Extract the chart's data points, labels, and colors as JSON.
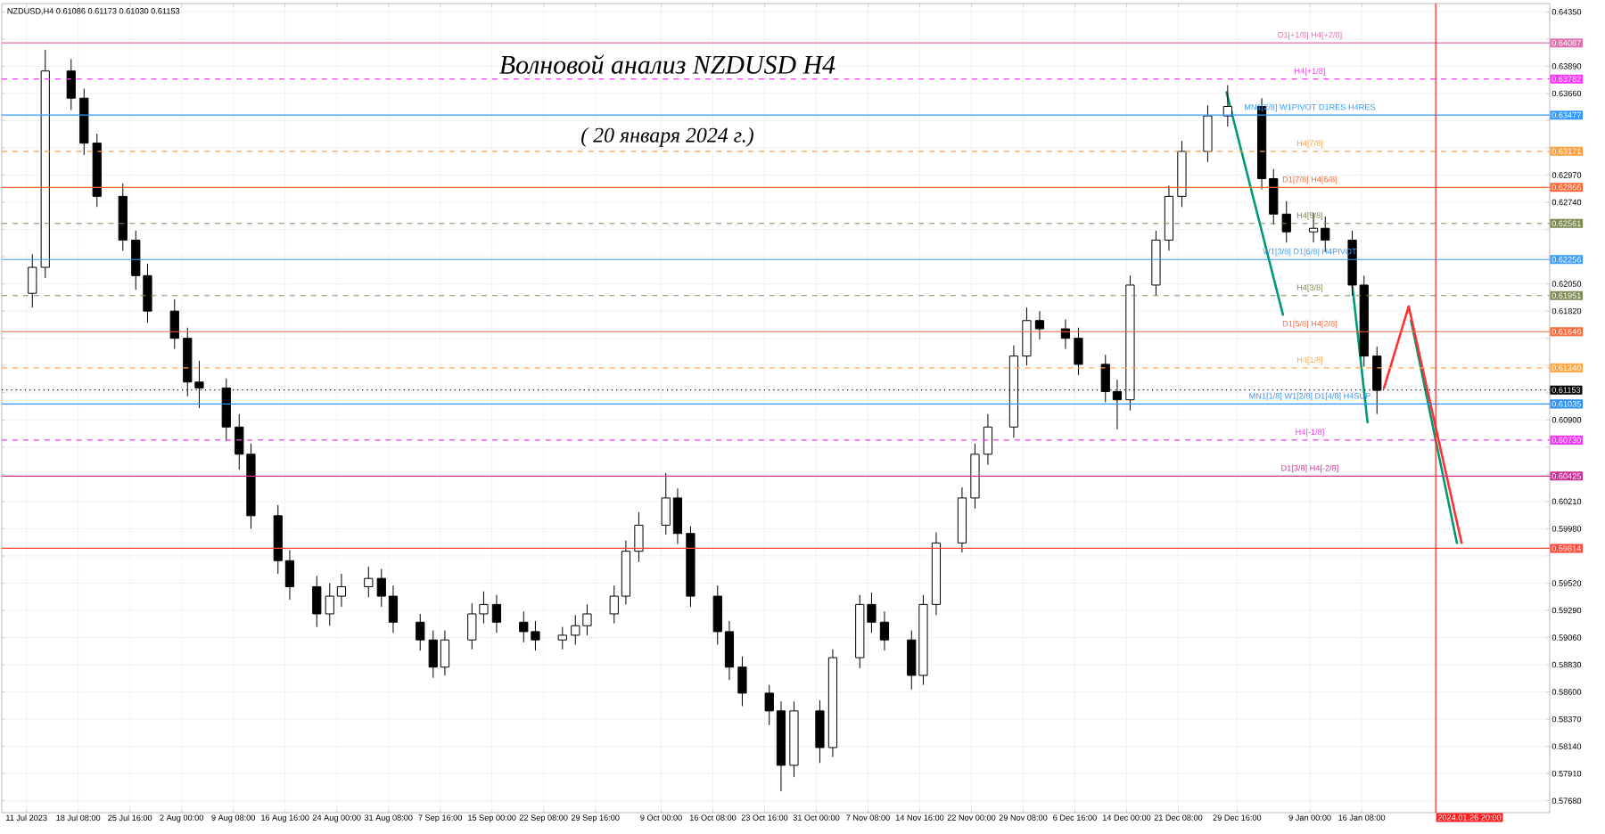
{
  "chart_data": {
    "type": "candlestick",
    "title": "Волновой анализ NZDUSD H4",
    "subtitle": "( 20 января 2024 г.)",
    "annotations": [
      "NZDUSD,H4  0.61086 0.61173 0.61030 0.61153"
    ],
    "x": [
      "2023-07-11T20:00",
      "2023-07-13T16:00",
      "2023-07-17T08:00",
      "2023-07-19T04:00",
      "2023-07-21T00:00",
      "2023-07-24T16:00",
      "2023-07-26T12:00",
      "2023-07-28T04:00",
      "2023-08-01T00:00",
      "2023-08-02T20:00",
      "2023-08-04T12:00",
      "2023-08-08T08:00",
      "2023-08-10T04:00",
      "2023-08-11T20:00",
      "2023-08-15T16:00",
      "2023-08-17T08:00",
      "2023-08-21T04:00",
      "2023-08-23T00:00",
      "2023-08-24T16:00",
      "2023-08-28T12:00",
      "2023-08-30T08:00",
      "2023-09-01T00:00",
      "2023-09-04T20:00",
      "2023-09-06T16:00",
      "2023-09-08T08:00",
      "2023-09-12T04:00",
      "2023-09-13T20:00",
      "2023-09-15T16:00",
      "2023-09-19T12:00",
      "2023-09-21T04:00",
      "2023-09-25T00:00",
      "2023-09-26T20:00",
      "2023-09-28T12:00",
      "2023-10-02T08:00",
      "2023-10-04T00:00",
      "2023-10-05T20:00",
      "2023-10-09T16:00",
      "2023-10-11T08:00",
      "2023-10-13T04:00",
      "2023-10-17T00:00",
      "2023-10-18T16:00",
      "2023-10-20T12:00",
      "2023-10-24T08:00",
      "2023-10-26T00:00",
      "2023-10-27T20:00",
      "2023-10-31T12:00",
      "2023-11-02T08:00",
      "2023-11-06T04:00",
      "2023-11-07T20:00",
      "2023-11-09T16:00",
      "2023-11-13T12:00",
      "2023-11-15T04:00",
      "2023-11-17T00:00",
      "2023-11-20T16:00",
      "2023-11-22T12:00",
      "2023-11-24T08:00",
      "2023-11-28T00:00",
      "2023-11-29T20:00",
      "2023-12-01T16:00",
      "2023-12-05T08:00",
      "2023-12-07T04:00",
      "2023-12-11T00:00",
      "2023-12-12T16:00",
      "2023-12-14T12:00",
      "2023-12-18T04:00",
      "2023-12-20T00:00",
      "2023-12-21T20:00",
      "2023-12-25T12:00",
      "2023-12-28T08:00",
      "2024-01-02T04:00",
      "2024-01-03T20:00",
      "2024-01-05T16:00",
      "2024-01-09T12:00",
      "2024-01-11T04:00",
      "2024-01-15T00:00",
      "2024-01-16T16:00",
      "2024-01-18T12:00"
    ],
    "ohlc": [
      [
        0.6197,
        0.623,
        0.6185,
        0.6219
      ],
      [
        0.6219,
        0.6403,
        0.621,
        0.6385
      ],
      [
        0.6385,
        0.6395,
        0.6352,
        0.6362
      ],
      [
        0.6362,
        0.637,
        0.6314,
        0.6324
      ],
      [
        0.6324,
        0.6332,
        0.627,
        0.6279
      ],
      [
        0.6279,
        0.629,
        0.6233,
        0.6242
      ],
      [
        0.6242,
        0.625,
        0.62,
        0.6212
      ],
      [
        0.6212,
        0.6222,
        0.6172,
        0.6182
      ],
      [
        0.6182,
        0.6192,
        0.615,
        0.6159
      ],
      [
        0.6159,
        0.6168,
        0.611,
        0.6122
      ],
      [
        0.6122,
        0.614,
        0.61,
        0.6117
      ],
      [
        0.6117,
        0.6125,
        0.6072,
        0.6084
      ],
      [
        0.6084,
        0.6095,
        0.6048,
        0.6061
      ],
      [
        0.6061,
        0.607,
        0.5998,
        0.6009
      ],
      [
        0.6009,
        0.6018,
        0.596,
        0.5971
      ],
      [
        0.5971,
        0.598,
        0.5938,
        0.5949
      ],
      [
        0.5949,
        0.5958,
        0.5915,
        0.5926
      ],
      [
        0.5926,
        0.5952,
        0.5916,
        0.5941
      ],
      [
        0.5941,
        0.596,
        0.5932,
        0.5949
      ],
      [
        0.5949,
        0.5966,
        0.594,
        0.5956
      ],
      [
        0.5956,
        0.5964,
        0.5932,
        0.5941
      ],
      [
        0.5941,
        0.595,
        0.591,
        0.5919
      ],
      [
        0.5919,
        0.5926,
        0.5895,
        0.5904
      ],
      [
        0.5904,
        0.5912,
        0.5872,
        0.5881
      ],
      [
        0.5881,
        0.5912,
        0.5874,
        0.5904
      ],
      [
        0.5904,
        0.5935,
        0.5896,
        0.5926
      ],
      [
        0.5926,
        0.5945,
        0.5918,
        0.5934
      ],
      [
        0.5934,
        0.5942,
        0.591,
        0.5919
      ],
      [
        0.5919,
        0.5928,
        0.5902,
        0.5911
      ],
      [
        0.5911,
        0.592,
        0.5895,
        0.5904
      ],
      [
        0.5904,
        0.5915,
        0.5896,
        0.5908
      ],
      [
        0.5908,
        0.5925,
        0.59,
        0.5916
      ],
      [
        0.5916,
        0.5934,
        0.5908,
        0.5926
      ],
      [
        0.5926,
        0.595,
        0.5918,
        0.5941
      ],
      [
        0.5941,
        0.5988,
        0.5934,
        0.5979
      ],
      [
        0.5979,
        0.6012,
        0.597,
        0.6001
      ],
      [
        0.6001,
        0.6045,
        0.5993,
        0.6024
      ],
      [
        0.6024,
        0.6032,
        0.5985,
        0.5994
      ],
      [
        0.5994,
        0.6,
        0.5932,
        0.5941
      ],
      [
        0.5941,
        0.595,
        0.59,
        0.5911
      ],
      [
        0.5911,
        0.592,
        0.587,
        0.5881
      ],
      [
        0.5881,
        0.589,
        0.5848,
        0.5859
      ],
      [
        0.5859,
        0.5866,
        0.5832,
        0.5844
      ],
      [
        0.5844,
        0.5852,
        0.5776,
        0.5798
      ],
      [
        0.5798,
        0.5852,
        0.5788,
        0.5844
      ],
      [
        0.5844,
        0.5853,
        0.58,
        0.5813
      ],
      [
        0.5813,
        0.5896,
        0.5805,
        0.5889
      ],
      [
        0.5889,
        0.5942,
        0.588,
        0.5934
      ],
      [
        0.5934,
        0.5944,
        0.591,
        0.5919
      ],
      [
        0.5919,
        0.5928,
        0.5895,
        0.5904
      ],
      [
        0.5904,
        0.5912,
        0.5862,
        0.5874
      ],
      [
        0.5874,
        0.5942,
        0.5866,
        0.5934
      ],
      [
        0.5934,
        0.5995,
        0.5925,
        0.5986
      ],
      [
        0.5986,
        0.6033,
        0.5978,
        0.6024
      ],
      [
        0.6024,
        0.607,
        0.6015,
        0.6061
      ],
      [
        0.6061,
        0.6095,
        0.6052,
        0.6084
      ],
      [
        0.6084,
        0.6153,
        0.6075,
        0.6144
      ],
      [
        0.6144,
        0.6185,
        0.6136,
        0.6174
      ],
      [
        0.6174,
        0.6182,
        0.6158,
        0.6167
      ],
      [
        0.6167,
        0.6175,
        0.615,
        0.6159
      ],
      [
        0.6159,
        0.6168,
        0.6128,
        0.6137
      ],
      [
        0.6137,
        0.6145,
        0.6105,
        0.6114
      ],
      [
        0.6114,
        0.6124,
        0.6082,
        0.6107
      ],
      [
        0.6107,
        0.6212,
        0.6098,
        0.6204
      ],
      [
        0.6204,
        0.625,
        0.6195,
        0.6242
      ],
      [
        0.6242,
        0.6288,
        0.6233,
        0.6279
      ],
      [
        0.6279,
        0.6326,
        0.627,
        0.6317
      ],
      [
        0.6317,
        0.6356,
        0.6308,
        0.6347
      ],
      [
        0.6347,
        0.6373,
        0.6338,
        0.6355
      ],
      [
        0.6355,
        0.6362,
        0.6285,
        0.6294
      ],
      [
        0.6294,
        0.6302,
        0.6255,
        0.6264
      ],
      [
        0.6264,
        0.6275,
        0.624,
        0.6249
      ],
      [
        0.6249,
        0.6265,
        0.624,
        0.6252
      ],
      [
        0.6252,
        0.6262,
        0.6232,
        0.6242
      ],
      [
        0.6242,
        0.625,
        0.6195,
        0.6204
      ],
      [
        0.6204,
        0.6212,
        0.6135,
        0.6144
      ],
      [
        0.6144,
        0.6152,
        0.6095,
        0.6115
      ]
    ],
    "series": [
      {
        "type": "line",
        "color": "#009977",
        "x": [
          "2023-12-28T04:00",
          "2024-01-05T04:00"
        ],
        "values": [
          0.6367,
          0.6179
        ]
      },
      {
        "type": "line",
        "color": "#009977",
        "x": [
          "2024-01-15T00:00",
          "2024-01-17T04:00"
        ],
        "values": [
          0.6204,
          0.6088
        ]
      },
      {
        "type": "line",
        "color": "#009977",
        "x": [
          "2024-01-23T08:00",
          "2024-01-29T20:00"
        ],
        "values": [
          0.6174,
          0.5986
        ]
      },
      {
        "type": "line",
        "color": "#ff3030",
        "x": [
          "2024-01-19T12:00",
          "2024-01-23T00:00",
          "2024-01-30T12:00"
        ],
        "values": [
          0.6117,
          0.6186,
          0.5986
        ]
      }
    ],
    "xlim": [
      "2023-07-07T12:00",
      "2024-02-12T00:00"
    ],
    "ylim": [
      0.5758,
      0.6442
    ],
    "xticks": [
      {
        "value": "2023-07-11T00:00",
        "label": "11 Jul 2023"
      },
      {
        "value": "2023-07-18T08:00",
        "label": "18 Jul 08:00"
      },
      {
        "value": "2023-07-25T16:00",
        "label": "25 Jul 16:00"
      },
      {
        "value": "2023-08-02T00:00",
        "label": "2 Aug 00:00"
      },
      {
        "value": "2023-08-09T08:00",
        "label": "9 Aug 08:00"
      },
      {
        "value": "2023-08-16T16:00",
        "label": "16 Aug 16:00"
      },
      {
        "value": "2023-08-24T00:00",
        "label": "24 Aug 00:00"
      },
      {
        "value": "2023-08-31T08:00",
        "label": "31 Aug 08:00"
      },
      {
        "value": "2023-09-07T16:00",
        "label": "7 Sep 16:00"
      },
      {
        "value": "2023-09-15T00:00",
        "label": "15 Sep 00:00"
      },
      {
        "value": "2023-09-22T08:00",
        "label": "22 Sep 08:00"
      },
      {
        "value": "2023-09-29T16:00",
        "label": "29 Sep 16:00"
      },
      {
        "value": "2023-10-09T00:00",
        "label": "9 Oct 00:00"
      },
      {
        "value": "2023-10-16T08:00",
        "label": "16 Oct 08:00"
      },
      {
        "value": "2023-10-23T16:00",
        "label": "23 Oct 16:00"
      },
      {
        "value": "2023-10-31T00:00",
        "label": "31 Oct 00:00"
      },
      {
        "value": "2023-11-07T08:00",
        "label": "7 Nov 08:00"
      },
      {
        "value": "2023-11-14T16:00",
        "label": "14 Nov 16:00"
      },
      {
        "value": "2023-11-22T00:00",
        "label": "22 Nov 00:00"
      },
      {
        "value": "2023-11-29T08:00",
        "label": "29 Nov 08:00"
      },
      {
        "value": "2023-12-06T16:00",
        "label": "6 Dec 16:00"
      },
      {
        "value": "2023-12-14T00:00",
        "label": "14 Dec 00:00"
      },
      {
        "value": "2023-12-21T08:00",
        "label": "21 Dec 08:00"
      },
      {
        "value": "2023-12-29T16:00",
        "label": "29 Dec 16:00"
      },
      {
        "value": "2024-01-09T00:00",
        "label": "9 Jan 00:00"
      },
      {
        "value": "2024-01-16T08:00",
        "label": "16 Jan 08:00"
      }
    ],
    "yticks": [
      {
        "value": 0.5768,
        "label": "0.57680"
      },
      {
        "value": 0.5791,
        "label": "0.57910"
      },
      {
        "value": 0.5814,
        "label": "0.58140"
      },
      {
        "value": 0.5837,
        "label": "0.58370"
      },
      {
        "value": 0.586,
        "label": "0.58600"
      },
      {
        "value": 0.5883,
        "label": "0.58830"
      },
      {
        "value": 0.5906,
        "label": "0.59060"
      },
      {
        "value": 0.5929,
        "label": "0.59290"
      },
      {
        "value": 0.5952,
        "label": "0.59520"
      },
      {
        "value": 0.5975,
        "label": null
      },
      {
        "value": 0.59814,
        "label": "0.59814"
      },
      {
        "value": 0.5998,
        "label": "0.59980"
      },
      {
        "value": 0.6021,
        "label": "0.60210"
      },
      {
        "value": 0.60425,
        "label": "0.60425"
      },
      {
        "value": 0.6044,
        "label": null
      },
      {
        "value": 0.6067,
        "label": null
      },
      {
        "value": 0.6073,
        "label": "0.60730"
      },
      {
        "value": 0.609,
        "label": "0.60900"
      },
      {
        "value": 0.61035,
        "label": "0.61035"
      },
      {
        "value": 0.6113,
        "label": null
      },
      {
        "value": 0.61153,
        "label": "0.61153"
      },
      {
        "value": 0.6134,
        "label": "0.61340"
      },
      {
        "value": 0.6136,
        "label": null
      },
      {
        "value": 0.6159,
        "label": null
      },
      {
        "value": 0.61646,
        "label": "0.61646"
      },
      {
        "value": 0.6182,
        "label": "0.61820"
      },
      {
        "value": 0.61951,
        "label": "0.61951"
      },
      {
        "value": 0.6205,
        "label": "0.62050"
      },
      {
        "value": 0.62256,
        "label": "0.62256"
      },
      {
        "value": 0.6228,
        "label": null
      },
      {
        "value": 0.6251,
        "label": null
      },
      {
        "value": 0.62561,
        "label": "0.62561"
      },
      {
        "value": 0.6274,
        "label": "0.62740"
      },
      {
        "value": 0.62866,
        "label": "0.62866"
      },
      {
        "value": 0.6297,
        "label": "0.62970"
      },
      {
        "value": 0.63171,
        "label": "0.63171"
      },
      {
        "value": 0.632,
        "label": null
      },
      {
        "value": 0.6343,
        "label": null
      },
      {
        "value": 0.63477,
        "label": "0.63477"
      },
      {
        "value": 0.6366,
        "label": "0.63660"
      },
      {
        "value": 0.63782,
        "label": "0.63782"
      },
      {
        "value": 0.6389,
        "label": "0.63890"
      },
      {
        "value": 0.64087,
        "label": "0.64087"
      },
      {
        "value": 0.6412,
        "label": null
      },
      {
        "value": 0.6435,
        "label": "0.64350"
      }
    ],
    "grid": true,
    "ref_lines": [
      {
        "axis": "y",
        "value": 0.64087,
        "label": "D1[+1/8] H4[+2/8]",
        "color": "#e070b0",
        "line_style": "solid"
      },
      {
        "axis": "y",
        "value": 0.63782,
        "label": "H4[+1/8]",
        "color": "#ff33ff",
        "line_style": "dashed"
      },
      {
        "axis": "y",
        "value": 0.63477,
        "label": "MN1[2/8] W1PIVOT D1RES H4RES",
        "color": "#3399ff",
        "line_style": "solid"
      },
      {
        "axis": "y",
        "value": 0.63171,
        "label": "H4[7/8]",
        "color": "#ffa040",
        "line_style": "dashed"
      },
      {
        "axis": "y",
        "value": 0.62866,
        "label": "D1[7/8] H4[6/8]",
        "color": "#ff6633",
        "line_style": "solid"
      },
      {
        "axis": "y",
        "value": 0.62561,
        "label": "H4[5/8]",
        "color": "#7a8a50",
        "line_style": "dashed"
      },
      {
        "axis": "y",
        "value": 0.62256,
        "label": "W1[3/8] D1[6/8] H4PIVOT",
        "color": "#3d9bf5",
        "line_style": "solid"
      },
      {
        "axis": "y",
        "value": 0.61951,
        "label": "H4[3/8]",
        "color": "#808c55",
        "line_style": "dashed"
      },
      {
        "axis": "y",
        "value": 0.61646,
        "label": "D1[5/8] H4[2/8]",
        "color": "#ff6a3a",
        "line_style": "solid"
      },
      {
        "axis": "y",
        "value": 0.6134,
        "label": "H4[1/8]",
        "color": "#ffa848",
        "line_style": "dashed"
      },
      {
        "axis": "y",
        "value": 0.61153,
        "label": null,
        "color": "#000000",
        "line_style": "dotted"
      },
      {
        "axis": "y",
        "value": 0.61035,
        "label": "MN1[1/8] W1[2/8] D1[4/8] H4SUP",
        "color": "#2f94fa",
        "line_style": "solid"
      },
      {
        "axis": "y",
        "value": 0.6073,
        "label": "H4[-1/8]",
        "color": "#f038f5",
        "line_style": "dashed"
      },
      {
        "axis": "y",
        "value": 0.60425,
        "label": "D1[3/8] H4[-2/8]",
        "color": "#cc3399",
        "line_style": "solid"
      },
      {
        "axis": "y",
        "value": 0.59814,
        "label": null,
        "color": "#ff4a3a",
        "line_style": "solid"
      },
      {
        "axis": "x",
        "value": "2024-01-26T20:00",
        "label": "2024.01.26 20:00",
        "color": "#ff2020",
        "line_style": "solid"
      }
    ]
  }
}
